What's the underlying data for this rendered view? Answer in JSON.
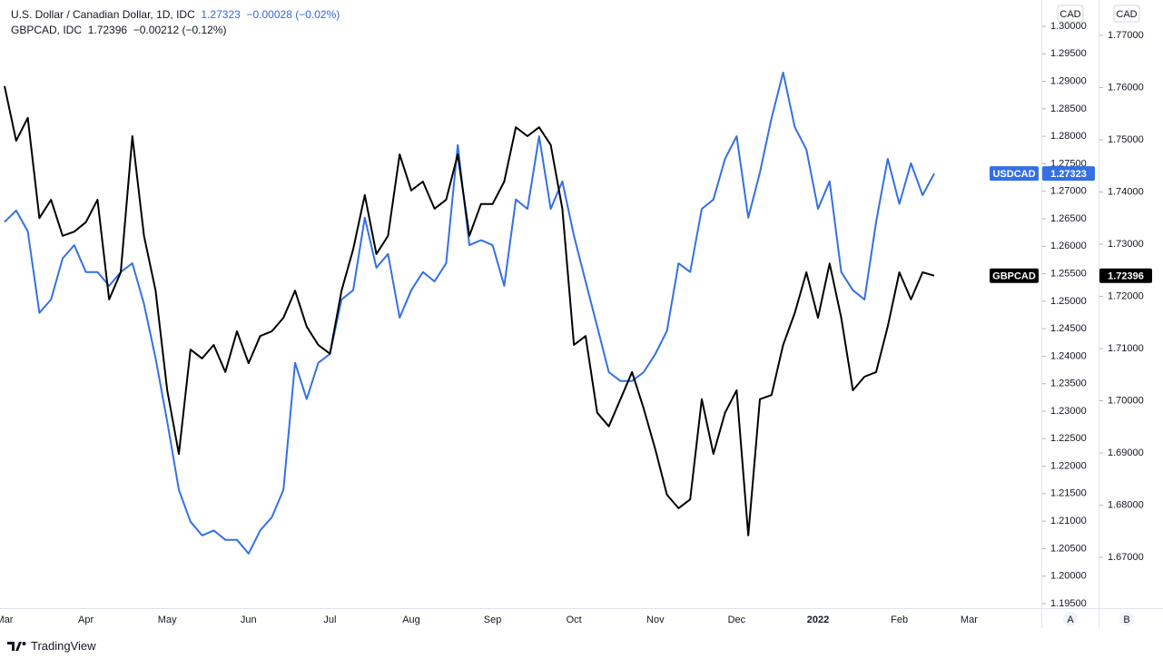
{
  "header": {
    "symbol1": "U.S. Dollar / Canadian Dollar, 1D, IDC",
    "price1": "1.27323",
    "change1": "−0.00028 (−0.02%)",
    "symbol2": "GBPCAD, IDC",
    "price2": "1.72396",
    "change2": "−0.00212 (−0.12%)"
  },
  "chart_data": {
    "type": "line",
    "categories": [
      "Mar",
      null,
      null,
      null,
      null,
      null,
      null,
      "Apr",
      null,
      null,
      null,
      null,
      null,
      null,
      "May",
      null,
      null,
      null,
      null,
      null,
      null,
      "Jun",
      null,
      null,
      null,
      null,
      null,
      null,
      "Jul",
      null,
      null,
      null,
      null,
      null,
      null,
      "Aug",
      null,
      null,
      null,
      null,
      null,
      null,
      "Sep",
      null,
      null,
      null,
      null,
      null,
      null,
      "Oct",
      null,
      null,
      null,
      null,
      null,
      null,
      "Nov",
      null,
      null,
      null,
      null,
      null,
      null,
      "Dec",
      null,
      null,
      null,
      null,
      null,
      null,
      "2022",
      null,
      null,
      null,
      null,
      null,
      null,
      "Feb",
      null,
      null,
      null,
      null,
      null,
      "Mar"
    ],
    "series": [
      {
        "name": "USDCAD",
        "color": "#3470e4",
        "axis": "y",
        "values": [
          1.2644,
          1.2665,
          1.2627,
          1.2479,
          1.2503,
          1.2578,
          1.2602,
          1.2553,
          1.2553,
          1.2528,
          1.2553,
          1.2569,
          1.2495,
          1.2396,
          1.2281,
          1.2157,
          1.2099,
          1.2074,
          1.2083,
          1.2066,
          1.2066,
          1.2041,
          1.2083,
          1.2107,
          1.2157,
          1.2388,
          1.2322,
          1.2388,
          1.2404,
          1.2503,
          1.252,
          1.2652,
          1.2561,
          1.2586,
          1.247,
          1.252,
          1.2553,
          1.2536,
          1.2569,
          1.2784,
          1.2602,
          1.2611,
          1.2602,
          1.2528,
          1.2685,
          1.2668,
          1.28,
          1.2668,
          1.2718,
          1.2619,
          1.2536,
          1.2454,
          1.2371,
          1.2355,
          1.2355,
          1.2371,
          1.2404,
          1.2446,
          1.2569,
          1.2553,
          1.2668,
          1.2685,
          1.2759,
          1.28,
          1.2652,
          1.2734,
          1.2833,
          1.2916,
          1.2817,
          1.2776,
          1.2668,
          1.2718,
          1.2553,
          1.252,
          1.2503,
          1.2644,
          1.2759,
          1.2677,
          1.2751,
          1.2693,
          1.27323,
          null,
          null,
          null
        ]
      },
      {
        "name": "GBPCAD",
        "color": "#000000",
        "axis": "y2",
        "values": [
          1.7603,
          1.7498,
          1.7542,
          1.735,
          1.7385,
          1.7316,
          1.7324,
          1.7342,
          1.7385,
          1.7194,
          1.7246,
          1.7507,
          1.7316,
          1.7211,
          1.702,
          1.6898,
          1.7098,
          1.7081,
          1.7107,
          1.7055,
          1.7133,
          1.7072,
          1.7124,
          1.7133,
          1.7159,
          1.7211,
          1.7142,
          1.7107,
          1.709,
          1.7211,
          1.729,
          1.7394,
          1.7281,
          1.7316,
          1.7472,
          1.7403,
          1.742,
          1.7368,
          1.7385,
          1.7472,
          1.7316,
          1.7377,
          1.7377,
          1.742,
          1.7524,
          1.7507,
          1.7524,
          1.749,
          1.7368,
          1.7107,
          1.7124,
          1.6977,
          1.6951,
          1.7003,
          1.7055,
          1.6985,
          1.6907,
          1.682,
          1.6794,
          1.6811,
          1.7003,
          1.6898,
          1.6977,
          1.702,
          1.6742,
          1.7003,
          1.7011,
          1.7107,
          1.7168,
          1.7246,
          1.7159,
          1.7263,
          1.7159,
          1.702,
          1.7046,
          1.7055,
          1.7142,
          1.7246,
          1.7194,
          1.7246,
          1.72396,
          null,
          null,
          null
        ]
      }
    ],
    "ylim": [
      1.19417,
      1.30479
    ],
    "yticks": [
      {
        "value": 1.195,
        "label": "1.19500"
      },
      {
        "value": 1.2,
        "label": "1.20000"
      },
      {
        "value": 1.205,
        "label": "1.20500"
      },
      {
        "value": 1.21,
        "label": "1.21000"
      },
      {
        "value": 1.215,
        "label": "1.21500"
      },
      {
        "value": 1.22,
        "label": "1.22000"
      },
      {
        "value": 1.225,
        "label": "1.22500"
      },
      {
        "value": 1.23,
        "label": "1.23000"
      },
      {
        "value": 1.235,
        "label": "1.23500"
      },
      {
        "value": 1.24,
        "label": "1.24000"
      },
      {
        "value": 1.245,
        "label": "1.24500"
      },
      {
        "value": 1.25,
        "label": "1.25000"
      },
      {
        "value": 1.255,
        "label": "1.25500"
      },
      {
        "value": 1.26,
        "label": "1.26000"
      },
      {
        "value": 1.265,
        "label": "1.26500"
      },
      {
        "value": 1.27,
        "label": "1.27000"
      },
      {
        "value": 1.275,
        "label": "1.27500"
      },
      {
        "value": 1.28,
        "label": "1.28000"
      },
      {
        "value": 1.285,
        "label": "1.28500"
      },
      {
        "value": 1.29,
        "label": "1.29000"
      },
      {
        "value": 1.295,
        "label": "1.29500"
      },
      {
        "value": 1.3,
        "label": "1.30000"
      }
    ],
    "y2lim": [
      1.66026,
      1.77678
    ],
    "y2ticks": [
      {
        "value": 1.67,
        "label": "1.67000"
      },
      {
        "value": 1.68,
        "label": "1.68000"
      },
      {
        "value": 1.69,
        "label": "1.69000"
      },
      {
        "value": 1.7,
        "label": "1.70000"
      },
      {
        "value": 1.71,
        "label": "1.71000"
      },
      {
        "value": 1.72,
        "label": "1.72000"
      },
      {
        "value": 1.73,
        "label": "1.73000"
      },
      {
        "value": 1.74,
        "label": "1.74000"
      },
      {
        "value": 1.75,
        "label": "1.75000"
      },
      {
        "value": 1.76,
        "label": "1.76000"
      },
      {
        "value": 1.77,
        "label": "1.77000"
      }
    ],
    "y_unit": "CAD",
    "y2_unit": "CAD",
    "y_button": "A",
    "y2_button": "B",
    "grid": false
  },
  "footer": {
    "brand": "TradingView"
  }
}
